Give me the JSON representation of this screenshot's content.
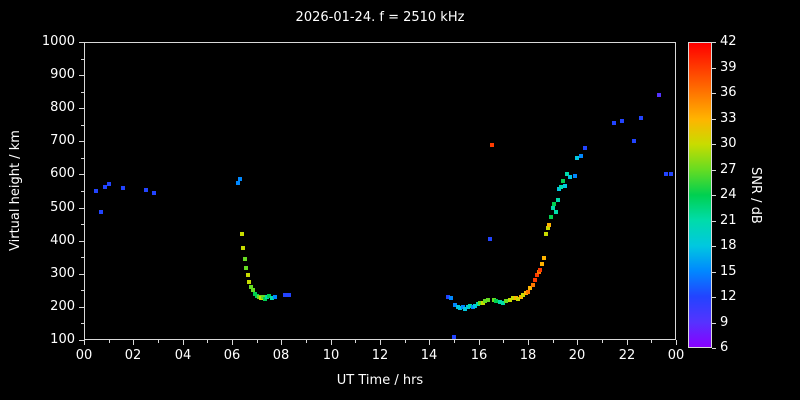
{
  "title": "2026-01-24. f = 2510 kHz",
  "axes": {
    "x_label": "UT Time / hrs",
    "y_label": "Virtual height / km"
  },
  "colors": {
    "background": "#000000",
    "text": "#ffffff",
    "axis": "#d9d9d9"
  },
  "colorbar": {
    "label": "SNR / dB",
    "min": 6,
    "max": 42,
    "ticks": [
      6,
      9,
      12,
      15,
      18,
      21,
      24,
      27,
      30,
      33,
      36,
      39,
      42
    ],
    "stops": [
      {
        "value": 6,
        "color": "#8800ff"
      },
      {
        "value": 9,
        "color": "#5533ff"
      },
      {
        "value": 12,
        "color": "#2244ff"
      },
      {
        "value": 15,
        "color": "#0088ff"
      },
      {
        "value": 18,
        "color": "#00c8e0"
      },
      {
        "value": 21,
        "color": "#00dcaa"
      },
      {
        "value": 24,
        "color": "#00d050"
      },
      {
        "value": 27,
        "color": "#66dc22"
      },
      {
        "value": 30,
        "color": "#c8dc00"
      },
      {
        "value": 33,
        "color": "#ffb400"
      },
      {
        "value": 36,
        "color": "#ff7800"
      },
      {
        "value": 39,
        "color": "#ff3c00"
      },
      {
        "value": 42,
        "color": "#ff0000"
      }
    ]
  },
  "chart_data": {
    "type": "scatter",
    "title": "2026-01-24. f = 2510 kHz",
    "xlabel": "UT Time / hrs",
    "ylabel": "Virtual height / km",
    "xlim": [
      0,
      24
    ],
    "ylim": [
      100,
      1000
    ],
    "x_ticks": [
      "00",
      "02",
      "04",
      "06",
      "08",
      "10",
      "12",
      "14",
      "16",
      "18",
      "20",
      "22",
      "00"
    ],
    "x_tick_values": [
      0,
      2,
      4,
      6,
      8,
      10,
      12,
      14,
      16,
      18,
      20,
      22,
      24
    ],
    "y_ticks": [
      100,
      200,
      300,
      400,
      500,
      600,
      700,
      800,
      900,
      1000
    ],
    "grid": false,
    "legend": "colorbar",
    "point_value_meaning": "SNR / dB",
    "points": [
      [
        0.5,
        550,
        12
      ],
      [
        0.7,
        487,
        12
      ],
      [
        0.85,
        563,
        12
      ],
      [
        1.0,
        570,
        12
      ],
      [
        1.6,
        558,
        12
      ],
      [
        2.5,
        553,
        12
      ],
      [
        2.85,
        545,
        12
      ],
      [
        6.25,
        575,
        15
      ],
      [
        6.32,
        585,
        15
      ],
      [
        6.4,
        420,
        30
      ],
      [
        6.46,
        378,
        30
      ],
      [
        6.52,
        345,
        27
      ],
      [
        6.58,
        318,
        27
      ],
      [
        6.64,
        296,
        30
      ],
      [
        6.7,
        276,
        30
      ],
      [
        6.76,
        260,
        27
      ],
      [
        6.84,
        250,
        27
      ],
      [
        6.92,
        240,
        24
      ],
      [
        7.0,
        233,
        24
      ],
      [
        7.08,
        229,
        27
      ],
      [
        7.16,
        227,
        30
      ],
      [
        7.24,
        231,
        27
      ],
      [
        7.32,
        224,
        24
      ],
      [
        7.42,
        230,
        21
      ],
      [
        7.52,
        232,
        24
      ],
      [
        7.62,
        228,
        21
      ],
      [
        7.74,
        231,
        15
      ],
      [
        8.15,
        235,
        12
      ],
      [
        8.3,
        235,
        12
      ],
      [
        14.75,
        230,
        12
      ],
      [
        14.88,
        226,
        15
      ],
      [
        15.0,
        110,
        12
      ],
      [
        15.06,
        207,
        15
      ],
      [
        15.16,
        201,
        18
      ],
      [
        15.26,
        196,
        18
      ],
      [
        15.36,
        200,
        15
      ],
      [
        15.46,
        194,
        18
      ],
      [
        15.56,
        199,
        18
      ],
      [
        15.66,
        204,
        21
      ],
      [
        15.76,
        199,
        15
      ],
      [
        15.86,
        204,
        18
      ],
      [
        15.96,
        209,
        21
      ],
      [
        16.06,
        213,
        27
      ],
      [
        16.16,
        211,
        30
      ],
      [
        16.26,
        218,
        27
      ],
      [
        16.36,
        222,
        27
      ],
      [
        16.45,
        405,
        12
      ],
      [
        16.55,
        690,
        39
      ],
      [
        16.62,
        221,
        27
      ],
      [
        16.72,
        218,
        24
      ],
      [
        16.86,
        214,
        21
      ],
      [
        17.0,
        213,
        21
      ],
      [
        17.12,
        218,
        27
      ],
      [
        17.26,
        222,
        30
      ],
      [
        17.4,
        226,
        30
      ],
      [
        17.5,
        228,
        33
      ],
      [
        17.6,
        225,
        30
      ],
      [
        17.7,
        231,
        33
      ],
      [
        17.8,
        236,
        30
      ],
      [
        17.9,
        241,
        33
      ],
      [
        18.0,
        246,
        36
      ],
      [
        18.1,
        256,
        33
      ],
      [
        18.2,
        266,
        36
      ],
      [
        18.28,
        281,
        39
      ],
      [
        18.36,
        296,
        39
      ],
      [
        18.44,
        306,
        36
      ],
      [
        18.5,
        312,
        39
      ],
      [
        18.58,
        331,
        33
      ],
      [
        18.66,
        347,
        33
      ],
      [
        18.74,
        420,
        30
      ],
      [
        18.8,
        437,
        30
      ],
      [
        18.86,
        447,
        33
      ],
      [
        18.94,
        470,
        24
      ],
      [
        19.0,
        500,
        21
      ],
      [
        19.06,
        512,
        24
      ],
      [
        19.12,
        487,
        21
      ],
      [
        19.2,
        522,
        21
      ],
      [
        19.26,
        556,
        18
      ],
      [
        19.34,
        561,
        21
      ],
      [
        19.42,
        581,
        24
      ],
      [
        19.5,
        566,
        18
      ],
      [
        19.6,
        601,
        21
      ],
      [
        19.7,
        591,
        18
      ],
      [
        19.9,
        596,
        15
      ],
      [
        20.0,
        651,
        18
      ],
      [
        20.15,
        656,
        15
      ],
      [
        20.3,
        681,
        12
      ],
      [
        21.5,
        756,
        12
      ],
      [
        21.8,
        761,
        12
      ],
      [
        22.3,
        701,
        12
      ],
      [
        22.6,
        771,
        12
      ],
      [
        23.3,
        841,
        9
      ],
      [
        23.6,
        601,
        12
      ],
      [
        23.8,
        601,
        12
      ]
    ]
  }
}
